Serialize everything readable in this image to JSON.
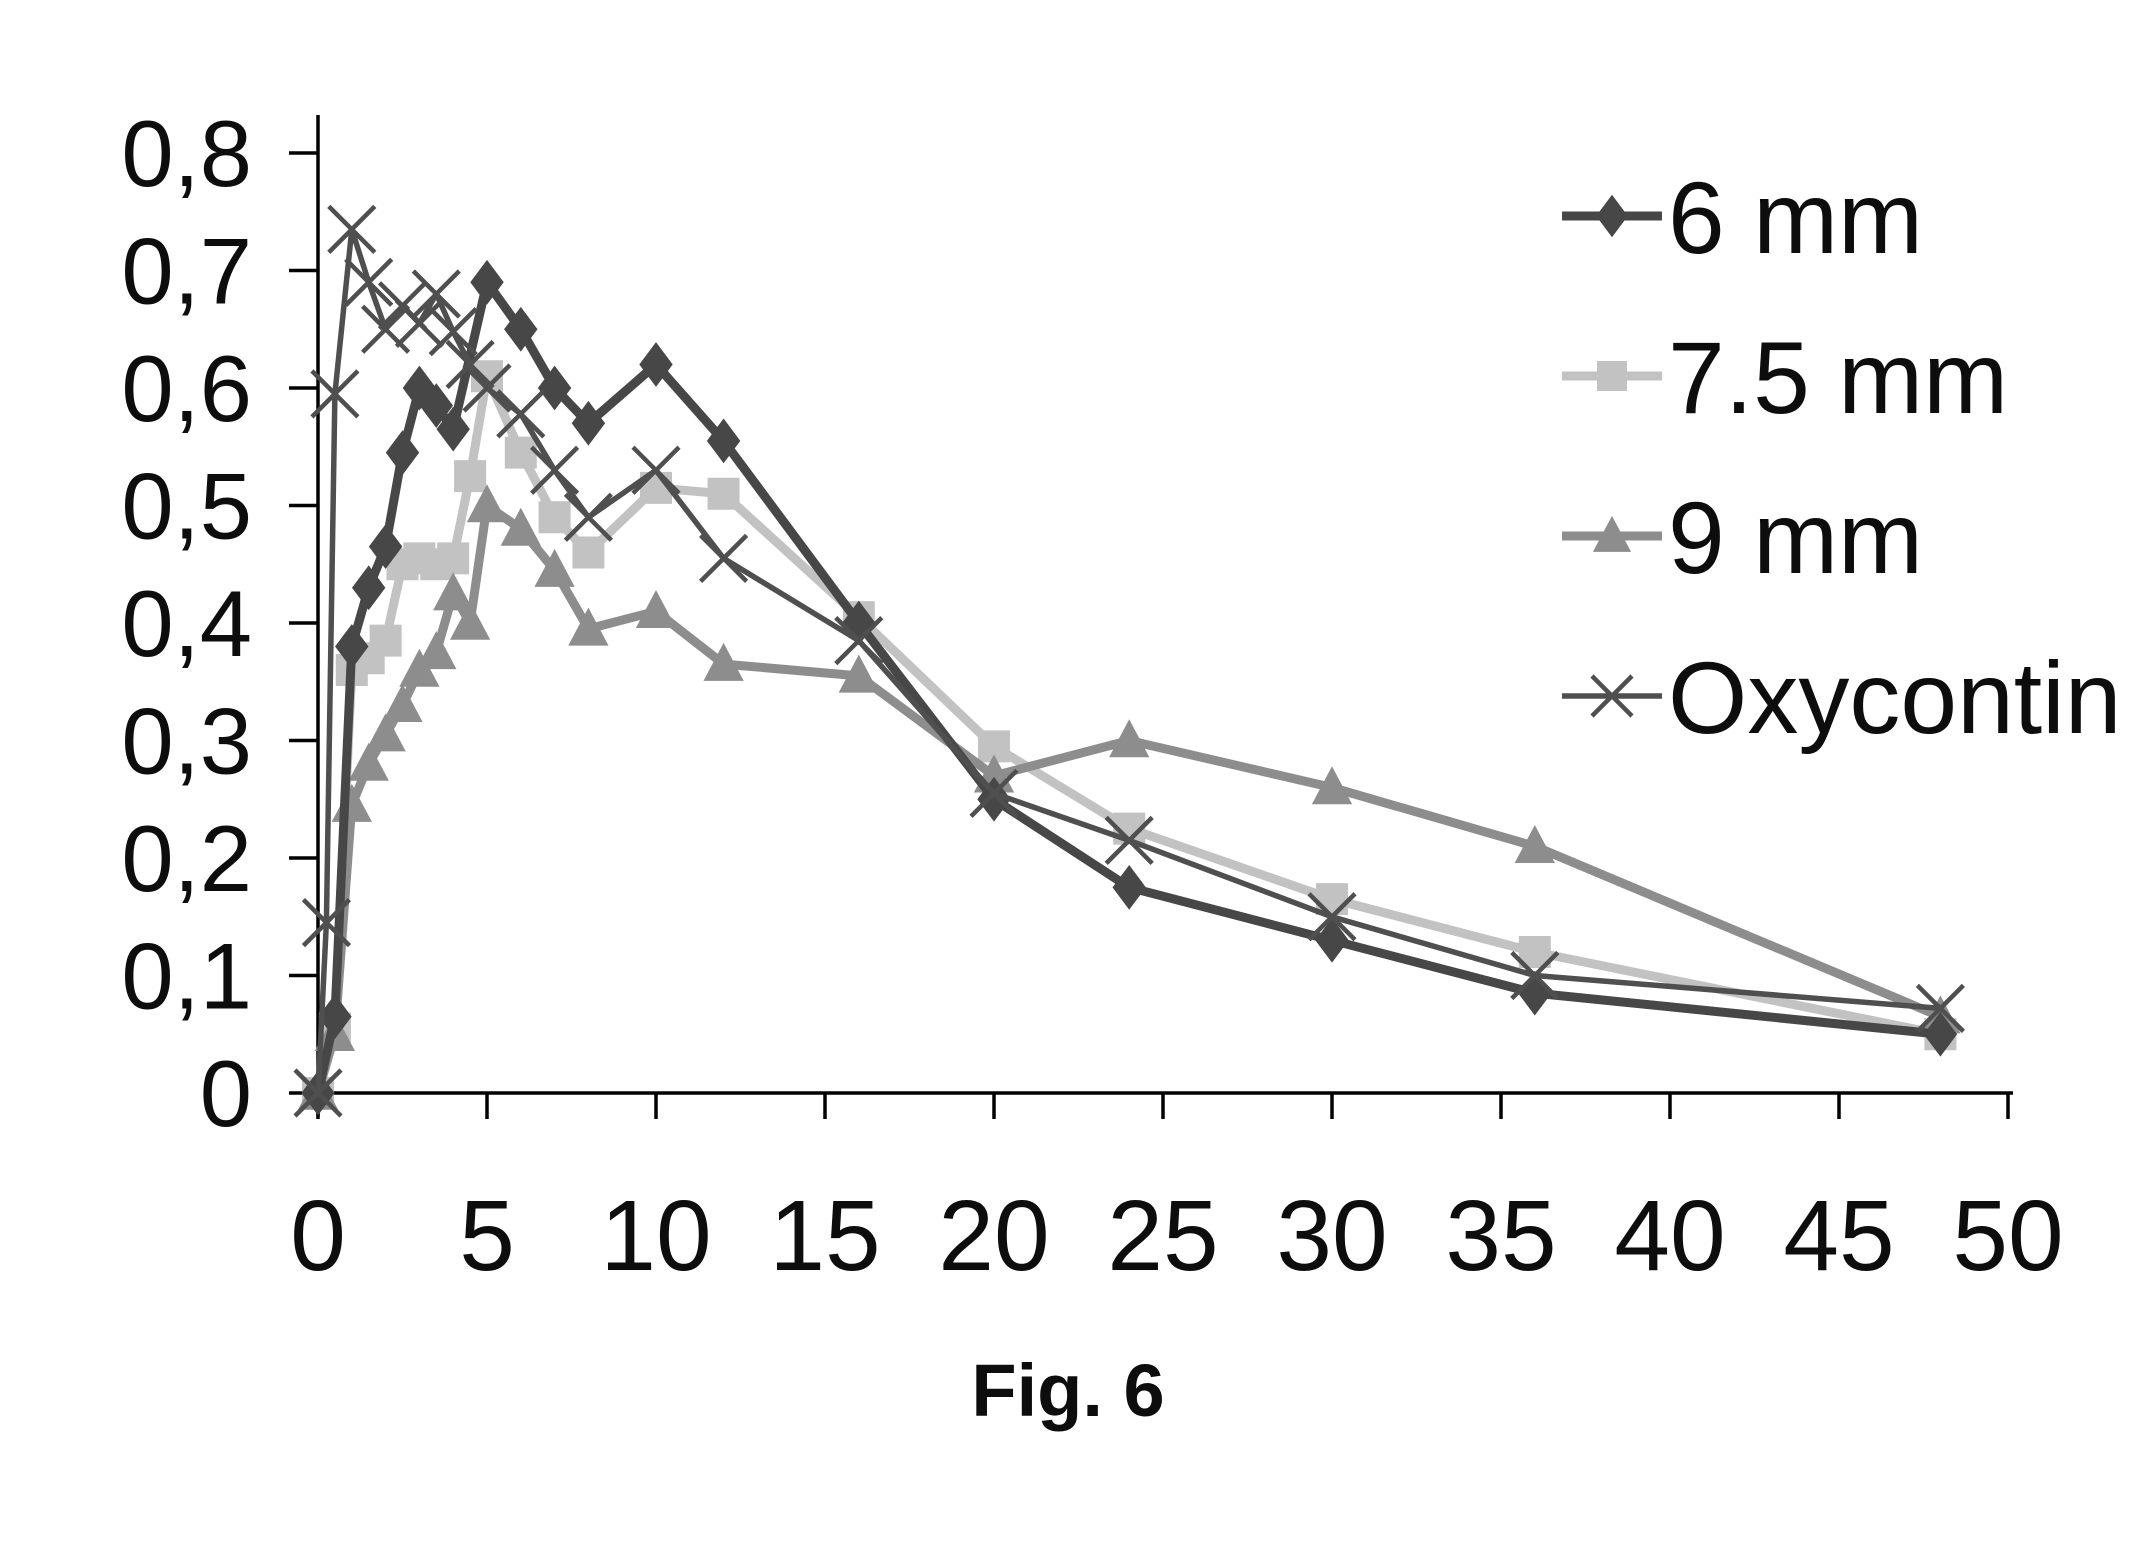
{
  "figure": {
    "caption": "Fig. 6",
    "background_color": "#ffffff",
    "axis_color": "#000000",
    "text_color": "#0d0d0d"
  },
  "chart_data": {
    "type": "line",
    "title": "",
    "xlabel": "",
    "ylabel": "",
    "xlim": [
      0,
      50
    ],
    "ylim": [
      0,
      0.8
    ],
    "grid": false,
    "legend_position": "right-top",
    "x_ticks": [
      0,
      5,
      10,
      15,
      20,
      25,
      30,
      35,
      40,
      45,
      50
    ],
    "x_tick_labels": [
      "0",
      "5",
      "10",
      "15",
      "20",
      "25",
      "30",
      "35",
      "40",
      "45",
      "50"
    ],
    "y_ticks": [
      0,
      0.1,
      0.2,
      0.3,
      0.4,
      0.5,
      0.6,
      0.7,
      0.8
    ],
    "y_tick_labels": [
      "0",
      "0,1",
      "0,2",
      "0,3",
      "0,4",
      "0,5",
      "0,6",
      "0,7",
      "0,8"
    ],
    "series": [
      {
        "name": "6 mm",
        "marker": "diamond",
        "icon": "diamond-marker-icon",
        "color": "#474747",
        "line_width": 9,
        "x": [
          0,
          0.5,
          1,
          1.5,
          2,
          2.5,
          3,
          3.5,
          4,
          5,
          6,
          7,
          8,
          10,
          12,
          16,
          20,
          24,
          30,
          36,
          48
        ],
        "y": [
          0,
          0.065,
          0.38,
          0.43,
          0.465,
          0.545,
          0.6,
          0.585,
          0.565,
          0.69,
          0.65,
          0.6,
          0.57,
          0.62,
          0.555,
          0.4,
          0.25,
          0.175,
          0.13,
          0.085,
          0.05
        ]
      },
      {
        "name": "7.5 mm",
        "marker": "square",
        "icon": "square-marker-icon",
        "color": "#c2c2c2",
        "line_width": 9,
        "x": [
          0,
          0.5,
          1,
          1.5,
          2,
          2.5,
          3,
          3.5,
          4,
          4.5,
          5,
          6,
          7,
          8,
          10,
          12,
          16,
          20,
          24,
          30,
          36,
          48
        ],
        "y": [
          0,
          0.055,
          0.36,
          0.37,
          0.385,
          0.45,
          0.455,
          0.45,
          0.455,
          0.525,
          0.61,
          0.545,
          0.49,
          0.46,
          0.515,
          0.51,
          0.405,
          0.295,
          0.225,
          0.165,
          0.12,
          0.05
        ]
      },
      {
        "name": "9 mm",
        "marker": "triangle",
        "icon": "triangle-marker-icon",
        "color": "#8d8d8d",
        "line_width": 9,
        "x": [
          0,
          0.5,
          1,
          1.5,
          2,
          2.5,
          3,
          3.5,
          4,
          4.5,
          5,
          6,
          7,
          8,
          10,
          12,
          16,
          20,
          24,
          30,
          36,
          48
        ],
        "y": [
          0,
          0.05,
          0.245,
          0.28,
          0.305,
          0.33,
          0.36,
          0.375,
          0.425,
          0.4,
          0.5,
          0.48,
          0.445,
          0.395,
          0.41,
          0.365,
          0.355,
          0.27,
          0.3,
          0.26,
          0.21,
          0.065
        ]
      },
      {
        "name": "Oxycontin",
        "marker": "x",
        "icon": "x-marker-icon",
        "color": "#4f4f4f",
        "line_width": 5.5,
        "x": [
          0,
          0.25,
          0.5,
          1,
          1.5,
          2,
          2.5,
          3,
          3.5,
          4,
          4.5,
          5,
          6,
          7,
          8,
          10,
          12,
          16,
          20,
          24,
          30,
          36,
          48
        ],
        "y": [
          0,
          0.145,
          0.595,
          0.735,
          0.69,
          0.65,
          0.67,
          0.655,
          0.68,
          0.648,
          0.62,
          0.6,
          0.578,
          0.53,
          0.49,
          0.53,
          0.455,
          0.385,
          0.255,
          0.215,
          0.15,
          0.1,
          0.072
        ]
      }
    ]
  }
}
